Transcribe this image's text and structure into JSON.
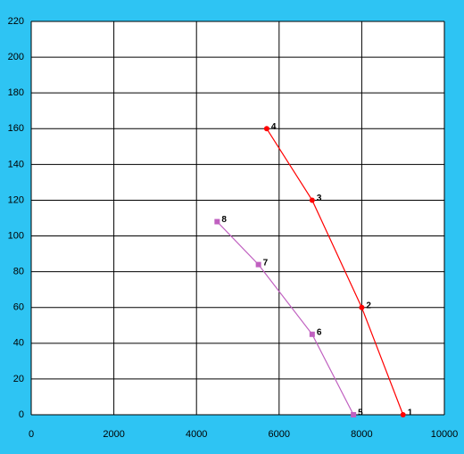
{
  "chart_data": {
    "type": "scatter",
    "xlim": [
      0,
      10000
    ],
    "xticks": [
      0,
      2000,
      4000,
      6000,
      8000,
      10000
    ],
    "ylim": [
      0,
      220
    ],
    "yticks": [
      0,
      20,
      40,
      60,
      80,
      100,
      120,
      140,
      160,
      180,
      200,
      220
    ],
    "grid": true,
    "series": [
      {
        "color": "#ff0000",
        "marker": "circle",
        "x": [
          9000,
          8000,
          6800,
          5700
        ],
        "values": [
          0,
          60,
          120,
          160
        ],
        "labels": [
          "1",
          "2",
          "3",
          "4"
        ]
      },
      {
        "color": "#c060c0",
        "marker": "square",
        "x": [
          7800,
          6800,
          5500,
          4500
        ],
        "values": [
          0,
          45,
          84,
          108
        ],
        "labels": [
          "5",
          "6",
          "7",
          "8"
        ]
      }
    ]
  }
}
